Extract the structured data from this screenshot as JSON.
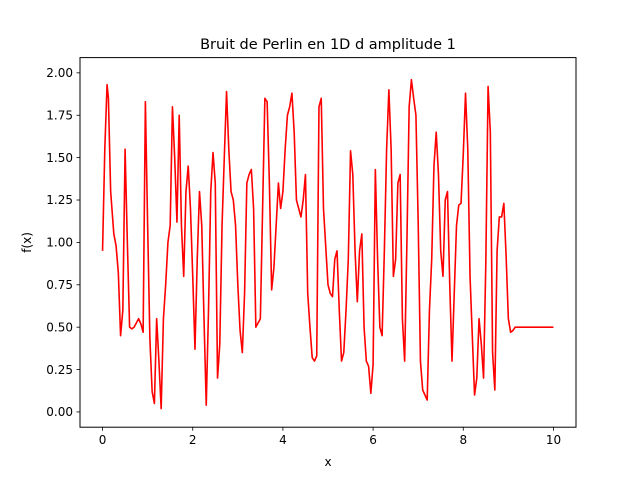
{
  "chart_data": {
    "type": "line",
    "title": "Bruit de Perlin en 1D d amplitude 1",
    "xlabel": "x",
    "ylabel": "f(x)",
    "xlim": [
      -0.5,
      10.5
    ],
    "ylim": [
      -0.09,
      2.09
    ],
    "xticks": [
      0,
      2,
      4,
      6,
      8,
      10
    ],
    "xtick_labels": [
      "0",
      "2",
      "4",
      "6",
      "8",
      "10"
    ],
    "yticks": [
      0.0,
      0.25,
      0.5,
      0.75,
      1.0,
      1.25,
      1.5,
      1.75,
      2.0
    ],
    "ytick_labels": [
      "0.00",
      "0.25",
      "0.50",
      "0.75",
      "1.00",
      "1.25",
      "1.50",
      "1.75",
      "2.00"
    ],
    "grid": false,
    "series": [
      {
        "color": "#ff0000",
        "x": [
          0.0,
          0.05,
          0.1,
          0.13,
          0.18,
          0.25,
          0.3,
          0.35,
          0.4,
          0.45,
          0.5,
          0.55,
          0.6,
          0.65,
          0.7,
          0.8,
          0.85,
          0.9,
          0.95,
          1.0,
          1.05,
          1.1,
          1.15,
          1.2,
          1.25,
          1.3,
          1.35,
          1.4,
          1.45,
          1.5,
          1.55,
          1.6,
          1.65,
          1.7,
          1.75,
          1.8,
          1.85,
          1.9,
          1.95,
          2.0,
          2.05,
          2.1,
          2.15,
          2.2,
          2.25,
          2.3,
          2.35,
          2.4,
          2.45,
          2.5,
          2.55,
          2.6,
          2.65,
          2.7,
          2.75,
          2.8,
          2.85,
          2.9,
          2.95,
          3.0,
          3.05,
          3.1,
          3.15,
          3.2,
          3.25,
          3.3,
          3.35,
          3.4,
          3.5,
          3.6,
          3.65,
          3.7,
          3.75,
          3.8,
          3.85,
          3.9,
          3.95,
          4.0,
          4.05,
          4.1,
          4.15,
          4.2,
          4.25,
          4.3,
          4.35,
          4.4,
          4.45,
          4.5,
          4.55,
          4.6,
          4.65,
          4.7,
          4.75,
          4.8,
          4.85,
          4.9,
          5.0,
          5.05,
          5.1,
          5.15,
          5.2,
          5.25,
          5.3,
          5.35,
          5.4,
          5.45,
          5.5,
          5.55,
          5.6,
          5.65,
          5.7,
          5.75,
          5.8,
          5.85,
          5.9,
          5.95,
          6.0,
          6.05,
          6.1,
          6.15,
          6.2,
          6.25,
          6.3,
          6.35,
          6.4,
          6.45,
          6.5,
          6.55,
          6.6,
          6.65,
          6.7,
          6.75,
          6.8,
          6.85,
          6.9,
          6.95,
          7.0,
          7.05,
          7.1,
          7.15,
          7.2,
          7.25,
          7.3,
          7.35,
          7.4,
          7.45,
          7.5,
          7.55,
          7.6,
          7.65,
          7.7,
          7.75,
          7.8,
          7.85,
          7.9,
          7.95,
          8.0,
          8.05,
          8.1,
          8.15,
          8.2,
          8.25,
          8.3,
          8.35,
          8.4,
          8.45,
          8.5,
          8.55,
          8.6,
          8.65,
          8.7,
          8.75,
          8.8,
          8.85,
          8.9,
          8.95,
          9.0,
          9.05,
          9.1,
          9.15,
          9.2,
          9.25,
          9.3,
          9.35,
          9.4,
          9.45,
          9.5,
          9.55,
          9.6,
          9.65,
          9.7,
          9.75,
          9.8,
          9.85,
          9.9,
          9.95,
          10.0
        ],
        "y": [
          0.95,
          1.55,
          1.93,
          1.85,
          1.3,
          1.05,
          0.98,
          0.82,
          0.45,
          0.6,
          1.55,
          1.0,
          0.5,
          0.49,
          0.5,
          0.55,
          0.52,
          0.47,
          1.83,
          1.1,
          0.43,
          0.12,
          0.05,
          0.55,
          0.3,
          0.02,
          0.55,
          0.75,
          1.0,
          1.1,
          1.8,
          1.5,
          1.12,
          1.75,
          1.1,
          0.8,
          1.3,
          1.45,
          1.2,
          0.8,
          0.37,
          0.9,
          1.3,
          1.1,
          0.55,
          0.04,
          0.6,
          1.3,
          1.53,
          1.35,
          0.2,
          0.4,
          1.1,
          1.5,
          1.89,
          1.55,
          1.3,
          1.25,
          1.1,
          0.75,
          0.48,
          0.35,
          0.7,
          1.35,
          1.4,
          1.43,
          1.2,
          0.5,
          0.55,
          1.85,
          1.83,
          1.35,
          0.72,
          0.85,
          1.1,
          1.35,
          1.2,
          1.3,
          1.55,
          1.75,
          1.8,
          1.88,
          1.65,
          1.25,
          1.2,
          1.15,
          1.25,
          1.4,
          0.7,
          0.5,
          0.32,
          0.3,
          0.33,
          1.8,
          1.85,
          1.2,
          0.75,
          0.7,
          0.68,
          0.9,
          0.95,
          0.6,
          0.3,
          0.35,
          0.6,
          0.9,
          1.54,
          1.4,
          0.95,
          0.65,
          0.95,
          1.05,
          0.5,
          0.3,
          0.27,
          0.11,
          0.28,
          1.43,
          0.9,
          0.5,
          0.45,
          0.95,
          1.55,
          1.9,
          1.55,
          0.8,
          0.9,
          1.35,
          1.4,
          0.55,
          0.3,
          1.0,
          1.8,
          1.96,
          1.85,
          1.75,
          1.12,
          0.3,
          0.13,
          0.1,
          0.07,
          0.6,
          0.9,
          1.45,
          1.65,
          1.4,
          0.95,
          0.8,
          1.25,
          1.3,
          0.75,
          0.3,
          0.7,
          1.1,
          1.22,
          1.23,
          1.52,
          1.88,
          1.55,
          0.8,
          0.45,
          0.1,
          0.2,
          0.55,
          0.4,
          0.2,
          0.88,
          1.92,
          1.65,
          0.35,
          0.13,
          0.95,
          1.15,
          1.15,
          1.23,
          0.92,
          0.55,
          0.47,
          0.48,
          0.5,
          0.5,
          0.5,
          0.5,
          0.5,
          0.5,
          0.5,
          0.5,
          0.5,
          0.5,
          0.5,
          0.5,
          0.5,
          0.5,
          0.5,
          0.5,
          0.5,
          0.5
        ]
      }
    ]
  }
}
